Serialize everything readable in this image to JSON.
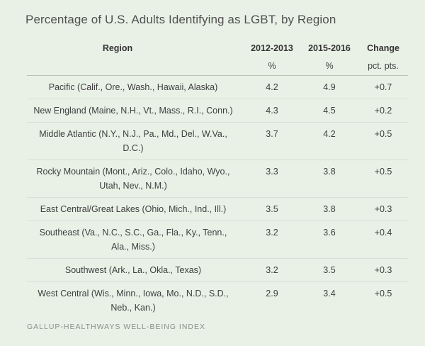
{
  "chart_data": {
    "type": "table",
    "title": "Percentage of U.S. Adults Identifying as LGBT, by Region",
    "columns": [
      "Region",
      "2012-2013",
      "2015-2016",
      "Change"
    ],
    "units": [
      "",
      "%",
      "%",
      "pct. pts."
    ],
    "rows": [
      {
        "region": "Pacific (Calif., Ore., Wash., Hawaii, Alaska)",
        "v2012": "4.2",
        "v2015": "4.9",
        "change": "+0.7"
      },
      {
        "region": "New England (Maine, N.H., Vt., Mass., R.I., Conn.)",
        "v2012": "4.3",
        "v2015": "4.5",
        "change": "+0.2"
      },
      {
        "region": "Middle Atlantic (N.Y., N.J., Pa., Md., Del., W.Va., D.C.)",
        "v2012": "3.7",
        "v2015": "4.2",
        "change": "+0.5"
      },
      {
        "region": "Rocky Mountain (Mont., Ariz., Colo., Idaho, Wyo., Utah, Nev., N.M.)",
        "v2012": "3.3",
        "v2015": "3.8",
        "change": "+0.5"
      },
      {
        "region": "East Central/Great Lakes (Ohio, Mich., Ind., Ill.)",
        "v2012": "3.5",
        "v2015": "3.8",
        "change": "+0.3"
      },
      {
        "region": "Southeast (Va., N.C., S.C., Ga., Fla., Ky., Tenn., Ala., Miss.)",
        "v2012": "3.2",
        "v2015": "3.6",
        "change": "+0.4"
      },
      {
        "region": "Southwest (Ark., La., Okla., Texas)",
        "v2012": "3.2",
        "v2015": "3.5",
        "change": "+0.3"
      },
      {
        "region": "West Central (Wis., Minn., Iowa, Mo., N.D., S.D., Neb., Kan.)",
        "v2012": "2.9",
        "v2015": "3.4",
        "change": "+0.5"
      }
    ],
    "source": "GALLUP-HEALTHWAYS WELL-BEING INDEX"
  },
  "colors": {
    "background": "#e9f1e7",
    "text": "#3e3e3e",
    "source_text": "#8a8f88",
    "row_divider": "#d8dfd6"
  }
}
